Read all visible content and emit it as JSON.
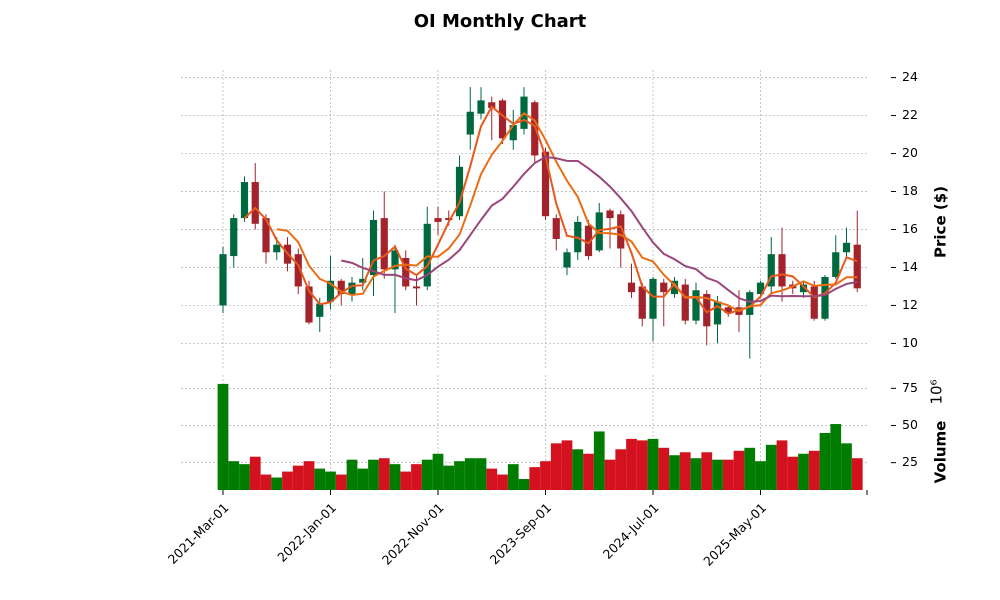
{
  "chart_data": {
    "type": "candlestick",
    "title": "OI Monthly Chart",
    "ylabel": "Price ($)",
    "volume_label": "Volume",
    "volume_multiplier": "10⁶",
    "categories": [
      "2021-Mar-01",
      null,
      null,
      null,
      null,
      null,
      null,
      null,
      null,
      null,
      "2022-Jan-01",
      null,
      null,
      null,
      null,
      null,
      null,
      null,
      null,
      null,
      "2022-Nov-01",
      null,
      null,
      null,
      null,
      null,
      null,
      null,
      null,
      null,
      "2023-Sep-01",
      null,
      null,
      null,
      null,
      null,
      null,
      null,
      null,
      null,
      "2024-Jul-01",
      null,
      null,
      null,
      null,
      null,
      null,
      null,
      null,
      null,
      "2025-May-01",
      null,
      null,
      null,
      null,
      null,
      null,
      null,
      null,
      null
    ],
    "open": [
      12.0,
      14.6,
      16.6,
      18.5,
      16.6,
      14.8,
      15.2,
      14.7,
      13.0,
      11.4,
      12.2,
      13.3,
      12.6,
      13.2,
      13.6,
      16.6,
      13.9,
      14.5,
      13.0,
      13.0,
      16.6,
      16.6,
      16.7,
      21.0,
      22.1,
      22.7,
      22.8,
      20.7,
      21.3,
      22.7,
      20.1,
      16.6,
      14.0,
      14.8,
      16.2,
      14.9,
      17.0,
      16.8,
      13.2,
      13.0,
      11.3,
      13.2,
      12.6,
      13.1,
      11.2,
      12.6,
      11.0,
      11.9,
      11.9,
      11.5,
      12.6,
      13.0,
      14.7,
      13.1,
      12.7,
      13.0,
      11.3,
      13.5,
      14.8,
      15.2
    ],
    "high": [
      15.1,
      16.8,
      18.8,
      19.5,
      16.8,
      15.6,
      15.6,
      15.0,
      13.3,
      12.4,
      14.6,
      13.4,
      13.5,
      14.5,
      17.0,
      18.0,
      15.2,
      14.9,
      13.6,
      17.2,
      17.2,
      17.0,
      19.9,
      23.5,
      23.5,
      23.0,
      22.9,
      22.3,
      23.5,
      22.8,
      20.3,
      16.8,
      15.0,
      16.7,
      16.5,
      17.4,
      17.1,
      17.0,
      14.2,
      13.2,
      13.5,
      13.4,
      13.5,
      13.4,
      13.2,
      12.8,
      12.5,
      12.0,
      12.8,
      12.8,
      13.3,
      15.6,
      16.1,
      13.3,
      13.3,
      13.3,
      13.6,
      15.7,
      16.1,
      17.0
    ],
    "low": [
      11.6,
      14.0,
      16.4,
      16.0,
      14.2,
      14.4,
      13.8,
      12.6,
      11.0,
      10.6,
      11.8,
      12.0,
      12.2,
      12.8,
      12.5,
      13.4,
      11.6,
      12.8,
      12.0,
      12.8,
      15.7,
      16.2,
      16.5,
      20.2,
      21.8,
      20.7,
      20.5,
      20.2,
      21.0,
      19.5,
      16.5,
      14.9,
      13.6,
      14.4,
      14.4,
      14.8,
      15.0,
      14.0,
      12.4,
      10.9,
      10.1,
      10.9,
      12.4,
      11.0,
      11.0,
      9.9,
      10.0,
      11.4,
      10.6,
      9.2,
      12.4,
      12.6,
      12.2,
      12.6,
      12.4,
      11.2,
      11.2,
      13.4,
      14.5,
      12.7
    ],
    "close": [
      14.7,
      16.6,
      18.5,
      16.3,
      14.8,
      15.2,
      14.2,
      13.0,
      11.1,
      12.1,
      13.3,
      12.6,
      13.2,
      13.4,
      16.5,
      13.9,
      14.9,
      13.0,
      12.9,
      16.3,
      16.4,
      16.5,
      19.3,
      22.2,
      22.8,
      22.4,
      20.8,
      21.5,
      23.0,
      19.9,
      16.7,
      15.5,
      14.8,
      16.4,
      14.6,
      16.9,
      16.6,
      15.0,
      12.7,
      11.3,
      13.4,
      12.7,
      13.3,
      11.2,
      12.8,
      10.9,
      12.2,
      11.6,
      11.5,
      12.7,
      13.2,
      14.7,
      13.0,
      12.9,
      13.1,
      11.3,
      13.5,
      14.8,
      15.3,
      12.9
    ],
    "volume": [
      78,
      26,
      24,
      29,
      17,
      15,
      19,
      23,
      26,
      21,
      19,
      17,
      27,
      21,
      27,
      28,
      24,
      19,
      24,
      27,
      31,
      23,
      26,
      28,
      28,
      21,
      17,
      24,
      14,
      22,
      26,
      38,
      40,
      34,
      31,
      46,
      27,
      34,
      41,
      40,
      41,
      35,
      30,
      32,
      28,
      32,
      27,
      27,
      33,
      35,
      26,
      37,
      40,
      29,
      31,
      33,
      45,
      51,
      38,
      28
    ],
    "mav": [
      3,
      6,
      12
    ],
    "mav_colors": [
      "#e8581c",
      "#ea6d16",
      "#9a4679"
    ],
    "up_color": "#00683f",
    "down_color": "#a2232b",
    "volume_up_color": "#007d00",
    "volume_down_color": "#d4111e",
    "ylim": [
      8.6,
      24.4
    ],
    "yticks": [
      10,
      12,
      14,
      16,
      18,
      20,
      22,
      24
    ],
    "y2lim": [
      6.6,
      84
    ],
    "y2ticks": [
      25,
      50,
      75
    ],
    "grid": true
  }
}
